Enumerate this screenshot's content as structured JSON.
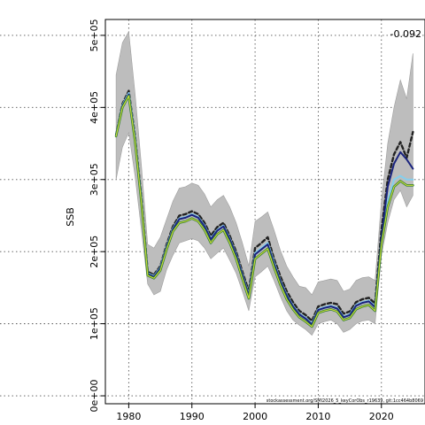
{
  "chart_data": {
    "type": "line",
    "ylabel": "SSB",
    "xlabel": "",
    "xlim": [
      1976.3,
      2026.9
    ],
    "ylim": [
      -11000,
      522000
    ],
    "x_ticks": [
      1980,
      1990,
      2000,
      2010,
      2020
    ],
    "x_tick_labels": [
      "1980",
      "1990",
      "2000",
      "2010",
      "2020"
    ],
    "y_ticks": [
      0,
      100000,
      200000,
      300000,
      400000,
      500000
    ],
    "y_tick_labels": [
      "0e+00",
      "1e+05",
      "2e+05",
      "3e+05",
      "4e+05",
      "5e+05"
    ],
    "grid": true,
    "annotation_value": "-0.092",
    "footnote": "stockassessment.org/SMI2026_5_keyCorObs_r19639, git:1cc464b8069",
    "years": [
      1978,
      1979,
      1980,
      1981,
      1982,
      1983,
      1984,
      1985,
      1986,
      1987,
      1988,
      1989,
      1990,
      1991,
      1992,
      1993,
      1994,
      1995,
      1996,
      1997,
      1998,
      1999,
      2000,
      2001,
      2002,
      2003,
      2004,
      2005,
      2006,
      2007,
      2008,
      2009,
      2010,
      2011,
      2012,
      2013,
      2014,
      2015,
      2016,
      2017,
      2018,
      2019,
      2020,
      2021,
      2022,
      2023,
      2024,
      2025
    ],
    "confidence_band": {
      "upper": [
        445000,
        490000,
        505000,
        420000,
        320000,
        210000,
        205000,
        220000,
        245000,
        270000,
        288000,
        290000,
        295000,
        292000,
        280000,
        262000,
        272000,
        278000,
        262000,
        240000,
        212000,
        180000,
        242000,
        248000,
        255000,
        230000,
        202000,
        180000,
        165000,
        152000,
        150000,
        140000,
        158000,
        160000,
        162000,
        160000,
        145000,
        148000,
        160000,
        164000,
        165000,
        160000,
        270000,
        350000,
        400000,
        438000,
        412000,
        475000
      ],
      "lower": [
        300000,
        345000,
        365000,
        305000,
        230000,
        155000,
        140000,
        145000,
        175000,
        195000,
        212000,
        215000,
        218000,
        215000,
        205000,
        190000,
        198000,
        205000,
        188000,
        170000,
        145000,
        118000,
        165000,
        172000,
        180000,
        160000,
        138000,
        118000,
        105000,
        98000,
        92000,
        84000,
        100000,
        103000,
        105000,
        100000,
        88000,
        92000,
        100000,
        104000,
        105000,
        100000,
        195000,
        240000,
        272000,
        285000,
        262000,
        278000
      ]
    },
    "series": [
      {
        "color": "#222222",
        "dashed": true,
        "values": [
          362000,
          405000,
          423000,
          360000,
          275000,
          172000,
          168000,
          180000,
          210000,
          235000,
          250000,
          252000,
          256000,
          252000,
          240000,
          222000,
          234000,
          240000,
          222000,
          200000,
          172000,
          145000,
          205000,
          212000,
          220000,
          190000,
          166000,
          145000,
          130000,
          118000,
          112000,
          104000,
          124000,
          127000,
          129000,
          127000,
          114000,
          117000,
          130000,
          134000,
          136000,
          128000,
          230000,
          300000,
          335000,
          352000,
          330000,
          366000
        ]
      },
      {
        "color": "#87CEEB",
        "dashed": false,
        "values": [
          362000,
          403000,
          420000,
          358000,
          272000,
          170000,
          166000,
          178000,
          207000,
          232000,
          246000,
          248000,
          252000,
          248000,
          236000,
          218000,
          230000,
          236000,
          218000,
          196000,
          168000,
          140000,
          198000,
          205000,
          212000,
          185000,
          160000,
          140000,
          125000,
          114000,
          108000,
          100000,
          120000,
          123000,
          125000,
          122000,
          110000,
          113000,
          126000,
          130000,
          132000,
          124000,
          215000,
          270000,
          300000,
          305000,
          300000,
          300000
        ]
      },
      {
        "color": "#1a237e",
        "dashed": false,
        "values": [
          362000,
          402000,
          418000,
          356000,
          271000,
          169000,
          165000,
          177000,
          206000,
          231000,
          245000,
          247000,
          251000,
          247000,
          235000,
          217000,
          229000,
          235000,
          217000,
          195000,
          167000,
          139000,
          196000,
          203000,
          210000,
          183000,
          159000,
          139000,
          124000,
          113000,
          107000,
          99000,
          119000,
          122000,
          124000,
          121000,
          109000,
          112000,
          125000,
          129000,
          131000,
          123000,
          220000,
          290000,
          322000,
          338000,
          328000,
          315000
        ]
      },
      {
        "color": "#2e7d32",
        "dashed": false,
        "values": [
          360000,
          400000,
          416000,
          353000,
          268000,
          167000,
          163000,
          174000,
          203000,
          228000,
          240000,
          242000,
          246000,
          242000,
          230000,
          212000,
          224000,
          230000,
          212000,
          190000,
          162000,
          135000,
          190000,
          197000,
          204000,
          178000,
          154000,
          134000,
          120000,
          109000,
          103000,
          96000,
          115000,
          118000,
          120000,
          117000,
          105000,
          108000,
          120000,
          124000,
          126000,
          118000,
          210000,
          262000,
          290000,
          298000,
          292000,
          292000
        ]
      },
      {
        "color": "#cddc39",
        "dashed": false,
        "values": [
          360000,
          400000,
          416000,
          353000,
          268000,
          167000,
          163000,
          174000,
          203000,
          228000,
          240000,
          242000,
          246000,
          242000,
          230000,
          212000,
          224000,
          230000,
          212000,
          190000,
          162000,
          135000,
          190000,
          197000,
          204000,
          178000,
          154000,
          134000,
          120000,
          109000,
          103000,
          96000,
          115000,
          118000,
          120000,
          117000,
          105000,
          108000,
          120000,
          124000,
          126000,
          118000,
          210000,
          262000,
          290000,
          298000,
          292000,
          292000
        ]
      }
    ]
  }
}
